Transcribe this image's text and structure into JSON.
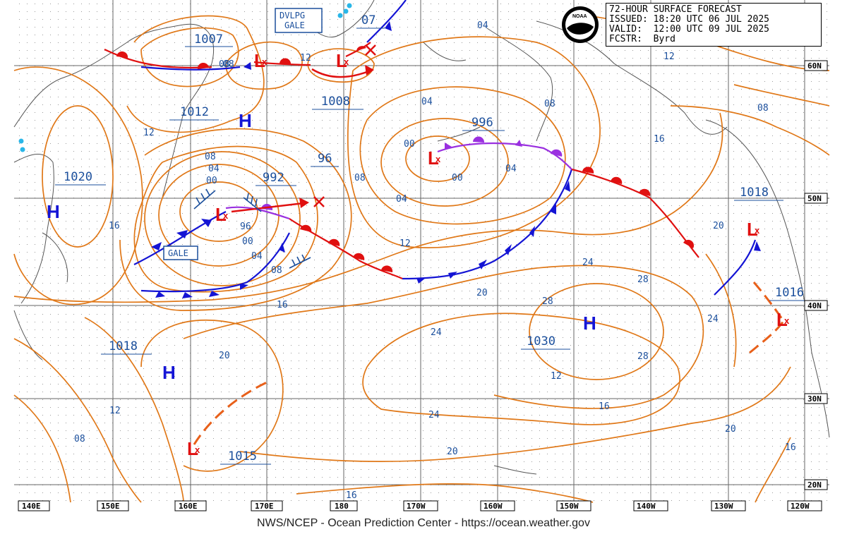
{
  "header": {
    "line1": "72-HOUR SURFACE FORECAST",
    "line2": "ISSUED: 18:20 UTC 06 JUL 2025",
    "line3": "VALID:  12:00 UTC 09 JUL 2025",
    "line4": "FCSTR:  Byrd"
  },
  "footer": "NWS/NCEP - Ocean Prediction Center - https://ocean.weather.gov",
  "agency_logo": "NOAA",
  "longitude_labels": [
    "140E",
    "150E",
    "160E",
    "170E",
    "180",
    "170W",
    "160W",
    "150W",
    "140W",
    "130W",
    "120W"
  ],
  "latitude_labels": [
    "60N",
    "50N",
    "40N",
    "30N",
    "20N"
  ],
  "pressure_centers": [
    {
      "label": "1007"
    },
    {
      "label": "1012"
    },
    {
      "label": "1008"
    },
    {
      "label": "1020"
    },
    {
      "label": "992"
    },
    {
      "label": "96"
    },
    {
      "label": "996"
    },
    {
      "label": "07"
    },
    {
      "label": "04"
    },
    {
      "label": "1018"
    },
    {
      "label": "1016"
    },
    {
      "label": "1030"
    },
    {
      "label": "1018"
    },
    {
      "label": "1015"
    }
  ],
  "high_symbol": "H",
  "isobar_labels": [
    "08",
    "08",
    "04",
    "00",
    "96",
    "00",
    "04",
    "08",
    "12",
    "16",
    "12",
    "16",
    "20",
    "24",
    "28",
    "28",
    "28",
    "24",
    "24",
    "20",
    "20",
    "16",
    "16",
    "12",
    "08",
    "08",
    "04",
    "00",
    "00",
    "04",
    "04",
    "08",
    "12",
    "16",
    "08",
    "12",
    "20",
    "24",
    "20",
    "16",
    "12",
    "08"
  ],
  "warnings": [
    {
      "line1": "DVLPG",
      "line2": "GALE"
    },
    {
      "line1": "GALE",
      "line2": ""
    }
  ],
  "colors": {
    "isobar": "#e07818",
    "cold_front": "#1414d4",
    "warm_front": "#e01010",
    "occluded_front": "#9a30e0",
    "low_symbol": "#e01010",
    "high_symbol": "#1515d6",
    "label": "#1b4f9c",
    "coast": "#555555",
    "grid": "#808080"
  }
}
